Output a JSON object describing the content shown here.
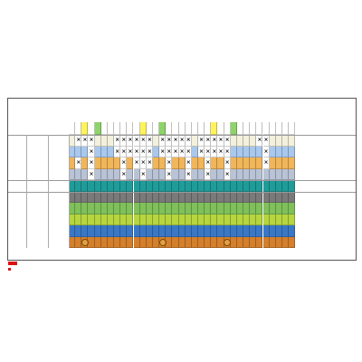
{
  "colors": {
    "ivory": "#f3f1dd",
    "lightblue": "#a9c8ee",
    "orange": "#f1b55a",
    "slate": "#b9c3d6",
    "teal": "#1f9c9a",
    "gray": "#7a7a7a",
    "green": "#7fc05a",
    "lime": "#b6d53f",
    "blue": "#3a78c6",
    "yellowgreen": "#d6db47",
    "brown": "#d47f2c",
    "white": "#ffffff"
  },
  "sheet": {
    "title": "",
    "title_note": "",
    "header_label": "",
    "header_unit": "",
    "section_label": "",
    "size_group_1": "",
    "size_group_2": "",
    "size_group_3": "",
    "right_col_1": "",
    "right_col_2": "",
    "right_col_3": "",
    "right_col_4": "",
    "rows": [
      {
        "group": "",
        "name": "",
        "spec": "",
        "color": "ivory",
        "marks": [
          0,
          1,
          1,
          1,
          0,
          0,
          0,
          1,
          1,
          1,
          1,
          1,
          1,
          0,
          1,
          1,
          1,
          1,
          1,
          0,
          1,
          1,
          1,
          1,
          1,
          0,
          0,
          0,
          0,
          1,
          1,
          0,
          0,
          0,
          0
        ]
      },
      {
        "group": "",
        "name": "",
        "spec": "",
        "color": "lightblue",
        "marks": [
          0,
          0,
          0,
          1,
          0,
          0,
          0,
          1,
          1,
          1,
          1,
          1,
          1,
          0,
          1,
          1,
          1,
          1,
          1,
          0,
          1,
          1,
          1,
          1,
          1,
          0,
          0,
          0,
          0,
          0,
          1,
          0,
          0,
          0,
          0
        ]
      },
      {
        "group": "",
        "name": "",
        "spec": "",
        "color": "orange",
        "marks": [
          0,
          1,
          0,
          1,
          0,
          0,
          0,
          0,
          1,
          0,
          1,
          1,
          1,
          0,
          0,
          1,
          0,
          0,
          1,
          0,
          0,
          1,
          0,
          0,
          1,
          0,
          0,
          0,
          0,
          0,
          1,
          0,
          0,
          0,
          0
        ]
      },
      {
        "group": "",
        "name": "",
        "spec": "",
        "color": "slate",
        "marks": [
          0,
          0,
          0,
          1,
          0,
          0,
          0,
          0,
          1,
          0,
          0,
          1,
          0,
          0,
          0,
          1,
          0,
          0,
          1,
          0,
          0,
          1,
          0,
          0,
          1,
          0,
          0,
          0,
          0,
          0,
          0,
          0,
          0,
          0,
          0
        ]
      },
      {
        "group": "",
        "name": "",
        "spec": "",
        "color": "teal",
        "marks": [
          0,
          0,
          0,
          0,
          0,
          0,
          0,
          0,
          0,
          0,
          0,
          0,
          0,
          0,
          0,
          0,
          0,
          0,
          0,
          0,
          0,
          0,
          0,
          0,
          0,
          0,
          0,
          0,
          0,
          0,
          0,
          0,
          0,
          0,
          0
        ]
      },
      {
        "group": "",
        "name": "",
        "spec": "",
        "color": "gray",
        "marks": [
          0,
          0,
          0,
          0,
          0,
          0,
          0,
          0,
          0,
          0,
          0,
          0,
          0,
          0,
          0,
          0,
          0,
          0,
          0,
          0,
          0,
          0,
          0,
          0,
          0,
          0,
          0,
          0,
          0,
          0,
          0,
          0,
          0,
          0,
          0
        ]
      },
      {
        "group": "",
        "name": "",
        "spec": "",
        "color": "green",
        "marks": [
          0,
          0,
          0,
          0,
          0,
          0,
          0,
          0,
          0,
          0,
          0,
          0,
          0,
          0,
          0,
          0,
          0,
          0,
          0,
          0,
          0,
          0,
          0,
          0,
          0,
          0,
          0,
          0,
          0,
          0,
          0,
          0,
          0,
          0,
          0
        ]
      },
      {
        "group": "",
        "name": "",
        "spec": "",
        "color": "lime",
        "marks": [
          0,
          0,
          0,
          0,
          0,
          0,
          0,
          0,
          0,
          0,
          0,
          0,
          0,
          0,
          0,
          0,
          0,
          0,
          0,
          0,
          0,
          0,
          0,
          0,
          0,
          0,
          0,
          0,
          0,
          0,
          0,
          0,
          0,
          0,
          0
        ]
      },
      {
        "group": "",
        "name": "",
        "spec": "",
        "color": "blue",
        "marks": [
          0,
          0,
          0,
          0,
          0,
          0,
          0,
          0,
          0,
          0,
          0,
          0,
          0,
          0,
          0,
          0,
          0,
          0,
          0,
          0,
          0,
          0,
          0,
          0,
          0,
          0,
          0,
          0,
          0,
          0,
          0,
          0,
          0,
          0,
          0
        ]
      },
      {
        "group": "",
        "name": "",
        "spec": "",
        "color": "brown",
        "marks": [
          0,
          0,
          0,
          0,
          0,
          0,
          0,
          0,
          0,
          0,
          0,
          0,
          0,
          0,
          0,
          0,
          0,
          0,
          0,
          0,
          0,
          0,
          0,
          0,
          0,
          0,
          0,
          0,
          0,
          0,
          0,
          0,
          0,
          0,
          0
        ]
      }
    ],
    "circle_cols_last_row": [
      2,
      14,
      24
    ],
    "header_colors": [
      "white",
      "white",
      "yellow",
      "white",
      "green",
      "white",
      "white",
      "white",
      "white",
      "white",
      "white",
      "yellow",
      "white",
      "white",
      "green",
      "white",
      "white",
      "white",
      "white",
      "white",
      "white",
      "white",
      "yellow",
      "white",
      "white",
      "green",
      "white",
      "white",
      "white",
      "white",
      "white",
      "white",
      "white",
      "white",
      "white"
    ]
  },
  "footer": {
    "note1": "",
    "note2": "",
    "corner_note": ""
  }
}
